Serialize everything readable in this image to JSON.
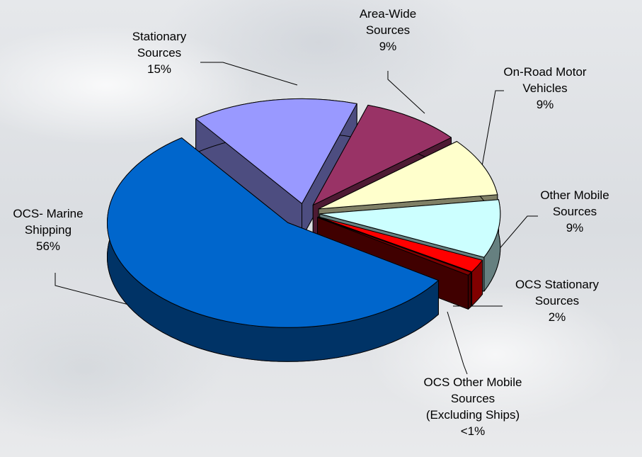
{
  "chart_data": {
    "type": "pie",
    "categories": [
      "Stationary\nSources",
      "Area-Wide\nSources",
      "On-Road Motor\nVehicles",
      "Other Mobile\nSources",
      "OCS Stationary\nSources",
      "OCS Other Mobile\nSources\n(Excluding Ships)",
      "OCS- Marine\nShipping"
    ],
    "values": [
      15,
      9,
      9,
      9,
      2,
      0.5,
      56
    ],
    "value_labels": [
      "15%",
      "9%",
      "9%",
      "9%",
      "2%",
      "<1%",
      "56%"
    ],
    "colors": [
      "#9999ff",
      "#993366",
      "#ffffcc",
      "#ccffff",
      "#ff0000",
      "#800000",
      "#0066cc"
    ]
  }
}
